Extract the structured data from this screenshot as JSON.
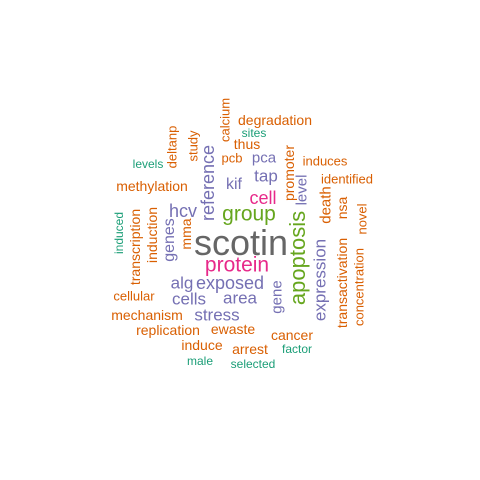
{
  "palette": {
    "orange": "#d95f02",
    "teal": "#1b9e77",
    "purple": "#7570b3",
    "magenta": "#e7298a",
    "green": "#66a61e",
    "gray": "#666666"
  },
  "words": [
    {
      "text": "scotin",
      "color": "gray"
    },
    {
      "text": "apoptosis",
      "color": "green"
    },
    {
      "text": "protein",
      "color": "magenta"
    },
    {
      "text": "group",
      "color": "green"
    },
    {
      "text": "cell",
      "color": "magenta"
    },
    {
      "text": "reference",
      "color": "purple"
    },
    {
      "text": "exposed",
      "color": "purple"
    },
    {
      "text": "expression",
      "color": "purple"
    },
    {
      "text": "stress",
      "color": "purple"
    },
    {
      "text": "area",
      "color": "purple"
    },
    {
      "text": "cells",
      "color": "purple"
    },
    {
      "text": "alg",
      "color": "purple"
    },
    {
      "text": "hcv",
      "color": "purple"
    },
    {
      "text": "kif",
      "color": "purple"
    },
    {
      "text": "tap",
      "color": "purple"
    },
    {
      "text": "genes",
      "color": "purple"
    },
    {
      "text": "gene",
      "color": "purple"
    },
    {
      "text": "level",
      "color": "purple"
    },
    {
      "text": "pca",
      "color": "purple"
    },
    {
      "text": "death",
      "color": "orange"
    },
    {
      "text": "methylation",
      "color": "orange"
    },
    {
      "text": "degradation",
      "color": "orange"
    },
    {
      "text": "transactivation",
      "color": "orange"
    },
    {
      "text": "induction",
      "color": "orange"
    },
    {
      "text": "transcription",
      "color": "orange"
    },
    {
      "text": "mechanism",
      "color": "orange"
    },
    {
      "text": "replication",
      "color": "orange"
    },
    {
      "text": "ewaste",
      "color": "orange"
    },
    {
      "text": "induce",
      "color": "orange"
    },
    {
      "text": "cancer",
      "color": "orange"
    },
    {
      "text": "arrest",
      "color": "orange"
    },
    {
      "text": "cellular",
      "color": "orange"
    },
    {
      "text": "concentration",
      "color": "orange"
    },
    {
      "text": "novel",
      "color": "orange"
    },
    {
      "text": "nsa",
      "color": "orange"
    },
    {
      "text": "identified",
      "color": "orange"
    },
    {
      "text": "induces",
      "color": "orange"
    },
    {
      "text": "promoter",
      "color": "orange"
    },
    {
      "text": "mma",
      "color": "orange"
    },
    {
      "text": "deltanp",
      "color": "orange"
    },
    {
      "text": "study",
      "color": "orange"
    },
    {
      "text": "calcium",
      "color": "orange"
    },
    {
      "text": "thus",
      "color": "orange"
    },
    {
      "text": "pcb",
      "color": "orange"
    },
    {
      "text": "sites",
      "color": "teal"
    },
    {
      "text": "levels",
      "color": "teal"
    },
    {
      "text": "induced",
      "color": "teal"
    },
    {
      "text": "factor",
      "color": "teal"
    },
    {
      "text": "selected",
      "color": "teal"
    },
    {
      "text": "male",
      "color": "teal"
    }
  ]
}
